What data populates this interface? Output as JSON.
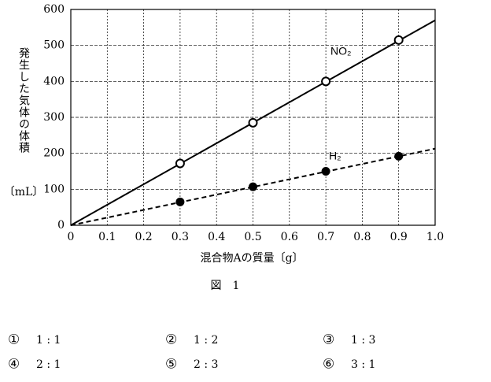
{
  "chart_data": {
    "type": "scatter-line",
    "x_label": "混合物Aの質量〔g〕",
    "y_label": "発生した気体の体積",
    "y_unit": "〔mL〕",
    "xlim": [
      0,
      1
    ],
    "ylim": [
      0,
      600
    ],
    "xticks": [
      0,
      0.1,
      0.2,
      0.3,
      0.4,
      0.5,
      0.6,
      0.7,
      0.8,
      0.9,
      {
        "value": 1,
        "label": "1.0"
      }
    ],
    "yticks": [
      0,
      100,
      200,
      300,
      400,
      500,
      600
    ],
    "grid": true,
    "series": [
      {
        "name": "NO₂",
        "color": "#000000",
        "marker": "hollow",
        "dash": false,
        "x": [
          0.3,
          0.5,
          0.7,
          0.9
        ],
        "values": [
          172,
          285,
          400,
          515
        ],
        "line": {
          "x": [
            0,
            1
          ],
          "values": [
            0,
            570
          ]
        }
      },
      {
        "name": "H₂",
        "color": "#000000",
        "marker": "filled",
        "dash": true,
        "x": [
          0.3,
          0.5,
          0.7,
          0.9
        ],
        "values": [
          65,
          107,
          150,
          192
        ],
        "line": {
          "x": [
            0,
            1
          ],
          "values": [
            0,
            213
          ]
        }
      }
    ]
  },
  "figure_caption": "図　1",
  "choices": [
    {
      "number": "①",
      "text": "1 : 1"
    },
    {
      "number": "②",
      "text": "1 : 2"
    },
    {
      "number": "③",
      "text": "1 : 3"
    },
    {
      "number": "④",
      "text": "2 : 1"
    },
    {
      "number": "⑤",
      "text": "2 : 3"
    },
    {
      "number": "⑥",
      "text": "3 : 1"
    }
  ]
}
